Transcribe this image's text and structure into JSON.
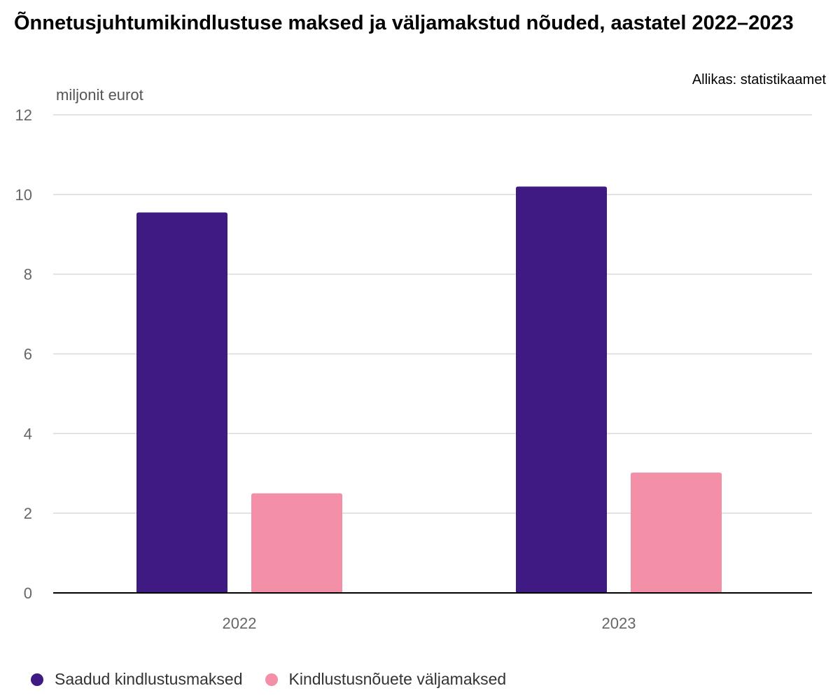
{
  "title": "Õnnetusjuhtumikindlustuse maksed ja väljamakstud nõuded, aastatel 2022–2023",
  "source": "Allikas: statistikaamet",
  "chart_data": {
    "type": "bar",
    "title": "Õnnetusjuhtumikindlustuse maksed ja väljamakstud nõuded, aastatel 2022–2023",
    "ylabel": "miljonit eurot",
    "xlabel": "",
    "categories": [
      "2022",
      "2023"
    ],
    "ylim": [
      0,
      12
    ],
    "yticks": [
      0,
      2,
      4,
      6,
      8,
      10,
      12
    ],
    "grid": true,
    "legend_position": "bottom-left",
    "series": [
      {
        "name": "Saadud kindlustusmaksed",
        "color": "#3f1a82",
        "values": [
          9.55,
          10.2
        ]
      },
      {
        "name": "Kindlustusnõuete väljamaksed",
        "color": "#f48fa8",
        "values": [
          2.5,
          3.02
        ]
      }
    ]
  }
}
